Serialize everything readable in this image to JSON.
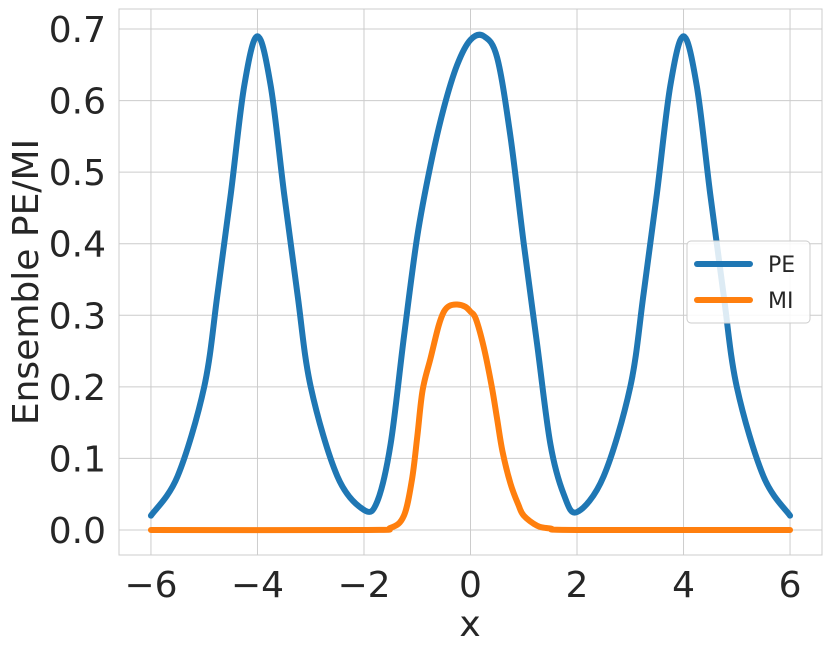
{
  "chart_data": {
    "type": "line",
    "title": "",
    "xlabel": "x",
    "ylabel": "Ensemble PE/MI",
    "xlim": [
      -6.6,
      6.6
    ],
    "ylim": [
      -0.035,
      0.728
    ],
    "xticks": [
      -6,
      -4,
      -2,
      0,
      2,
      4,
      6
    ],
    "xtick_labels": [
      "−6",
      "−4",
      "−2",
      "0",
      "2",
      "4",
      "6"
    ],
    "yticks": [
      0.0,
      0.1,
      0.2,
      0.3,
      0.4,
      0.5,
      0.6,
      0.7
    ],
    "ytick_labels": [
      "0.0",
      "0.1",
      "0.2",
      "0.3",
      "0.4",
      "0.5",
      "0.6",
      "0.7"
    ],
    "grid": true,
    "legend": "center-right",
    "series": [
      {
        "name": "PE",
        "color": "#1f77b4",
        "x": [
          -6.0,
          -5.5,
          -5.0,
          -4.75,
          -4.5,
          -4.25,
          -4.0,
          -3.75,
          -3.5,
          -3.25,
          -3.0,
          -2.5,
          -2.0,
          -1.75,
          -1.5,
          -1.25,
          -1.0,
          -0.75,
          -0.5,
          -0.25,
          0.0,
          0.25,
          0.5,
          0.75,
          1.0,
          1.25,
          1.5,
          1.75,
          2.0,
          2.5,
          3.0,
          3.25,
          3.5,
          3.75,
          4.0,
          4.25,
          4.5,
          4.75,
          5.0,
          5.5,
          6.0
        ],
        "y": [
          0.02,
          0.075,
          0.2,
          0.33,
          0.47,
          0.62,
          0.69,
          0.62,
          0.47,
          0.33,
          0.2,
          0.075,
          0.028,
          0.04,
          0.12,
          0.27,
          0.41,
          0.51,
          0.59,
          0.65,
          0.685,
          0.69,
          0.66,
          0.55,
          0.4,
          0.26,
          0.12,
          0.05,
          0.025,
          0.075,
          0.2,
          0.33,
          0.47,
          0.62,
          0.69,
          0.62,
          0.47,
          0.33,
          0.2,
          0.075,
          0.02
        ]
      },
      {
        "name": "MI",
        "color": "#ff7f0e",
        "x": [
          -6.0,
          -2.0,
          -1.5,
          -1.25,
          -1.1,
          -1.0,
          -0.9,
          -0.75,
          -0.6,
          -0.5,
          -0.4,
          -0.25,
          -0.1,
          0.0,
          0.1,
          0.25,
          0.4,
          0.5,
          0.6,
          0.75,
          0.9,
          1.0,
          1.25,
          1.5,
          2.0,
          6.0
        ],
        "y": [
          0.0,
          0.0,
          0.003,
          0.02,
          0.07,
          0.13,
          0.195,
          0.24,
          0.285,
          0.305,
          0.313,
          0.315,
          0.312,
          0.305,
          0.295,
          0.255,
          0.2,
          0.155,
          0.11,
          0.065,
          0.035,
          0.02,
          0.006,
          0.002,
          0.0,
          0.0
        ]
      }
    ]
  }
}
